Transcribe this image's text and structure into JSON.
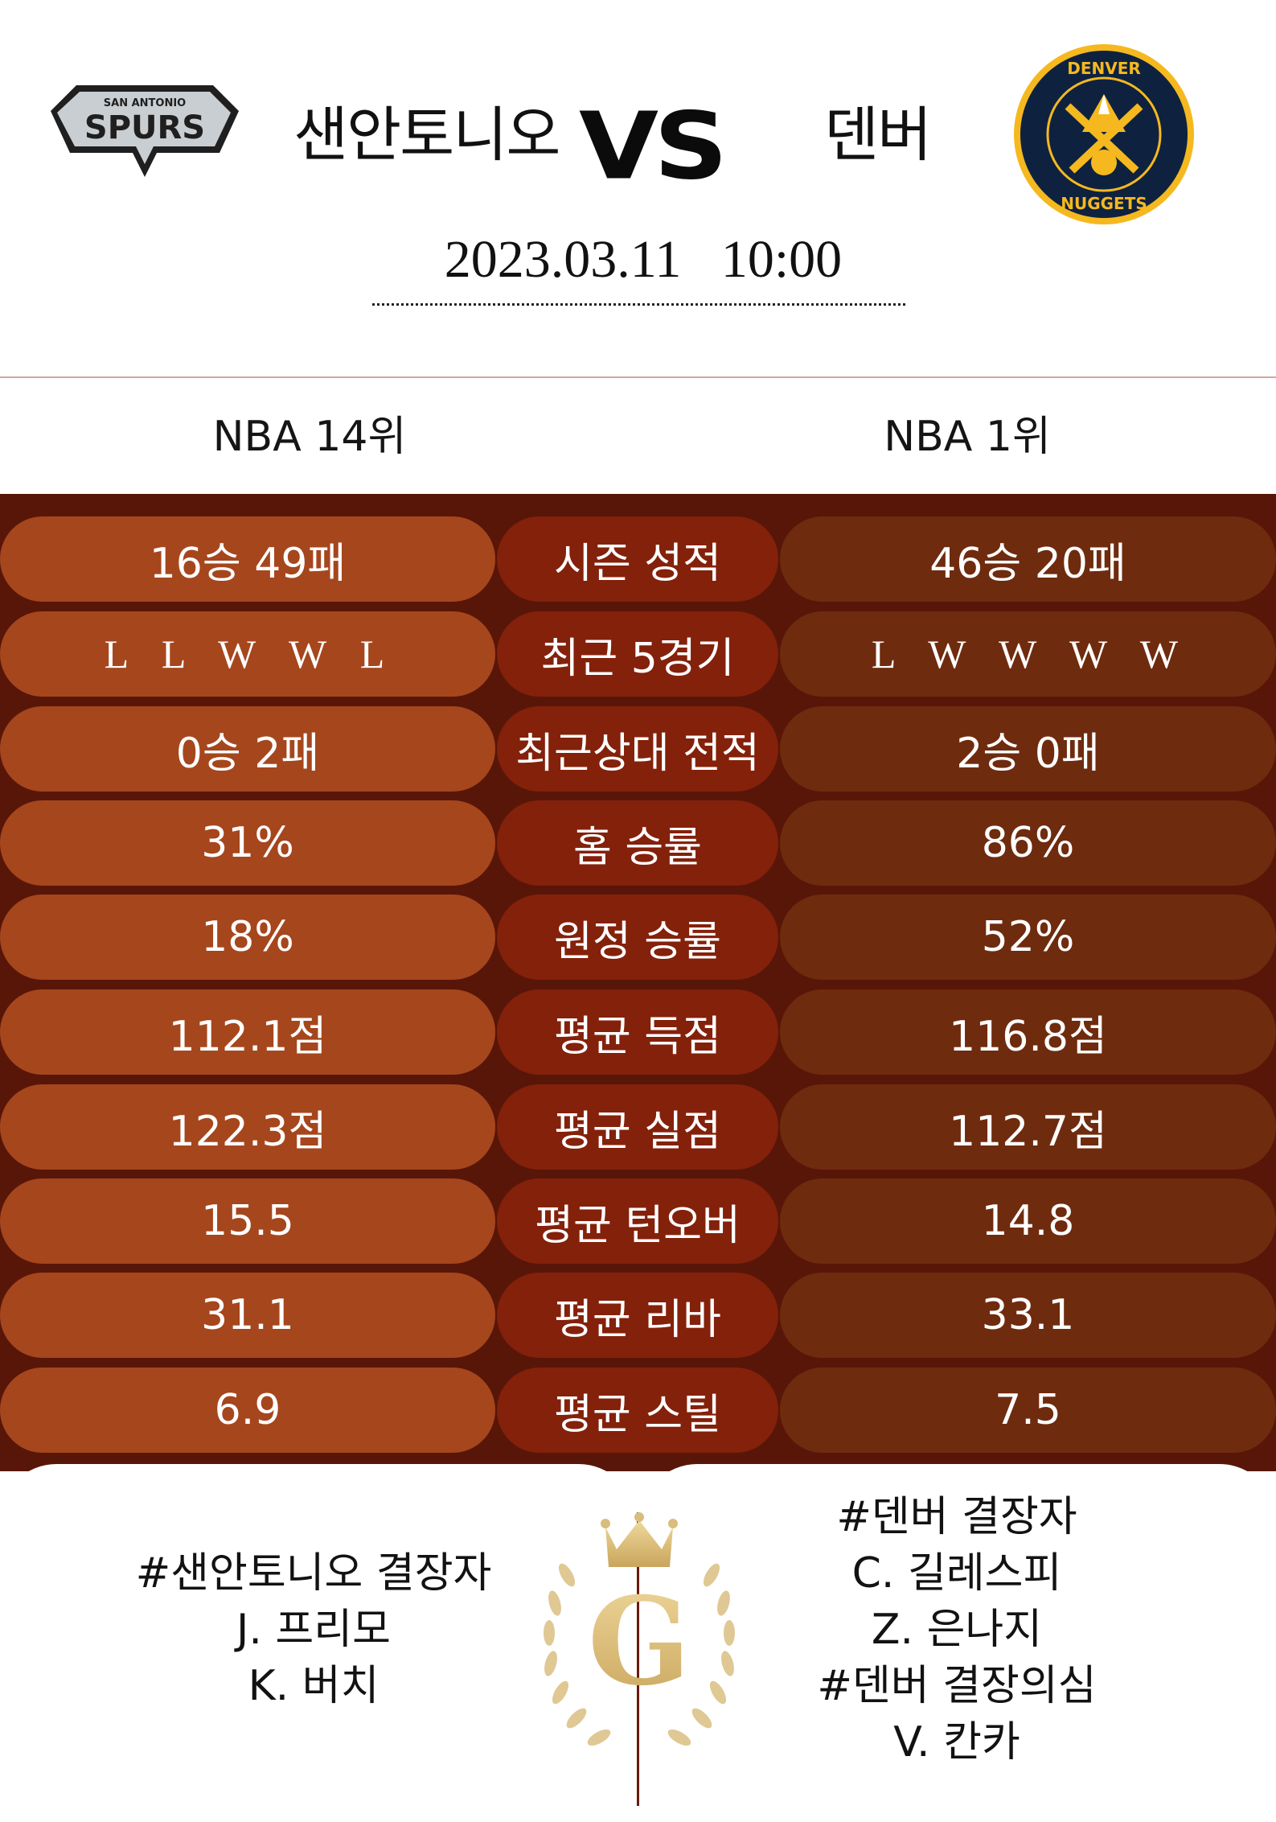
{
  "header": {
    "home_team": "샌안토니오",
    "vs": "VS",
    "away_team": "덴버",
    "datetime": "2023.03.11   10:00",
    "home_logo_text_top": "SAN ANTONIO",
    "home_logo_text_main": "SPURS",
    "away_logo_text_top": "DENVER",
    "away_logo_text_bottom": "NUGGETS"
  },
  "ranks": {
    "home": "NBA 14위",
    "away": "NBA 1위"
  },
  "stats": [
    {
      "home": "16승 49패",
      "label": "시즌 성적",
      "away": "46승 20패"
    },
    {
      "home": "L  L  W  W  L",
      "label": "최근 5경기",
      "away": "L  W  W  W  W"
    },
    {
      "home": "0승 2패",
      "label": "최근상대 전적",
      "away": "2승 0패"
    },
    {
      "home": "31%",
      "label": "홈 승률",
      "away": "86%"
    },
    {
      "home": "18%",
      "label": "원정 승률",
      "away": "52%"
    },
    {
      "home": "112.1점",
      "label": "평균 득점",
      "away": "116.8점"
    },
    {
      "home": "122.3점",
      "label": "평균 실점",
      "away": "112.7점"
    },
    {
      "home": "15.5",
      "label": "평균 턴오버",
      "away": "14.8"
    },
    {
      "home": "31.1",
      "label": "평균 리바",
      "away": "33.1"
    },
    {
      "home": "6.9",
      "label": "평균 스틸",
      "away": "7.5"
    }
  ],
  "absences": {
    "home": [
      "#샌안토니오 결장자",
      "J. 프리모",
      "K. 버치"
    ],
    "away": [
      "#덴버 결장자",
      "C. 길레스피",
      "Z. 은나지",
      "#덴버 결장의심",
      "V. 칸카"
    ]
  },
  "watermark": {
    "letter": "G"
  },
  "colors": {
    "stats_bg": "#581608",
    "home_pill": "#a6461d",
    "label_pill": "#84210b",
    "away_pill": "#6f2b0e",
    "gold": "#d9bd7d"
  }
}
